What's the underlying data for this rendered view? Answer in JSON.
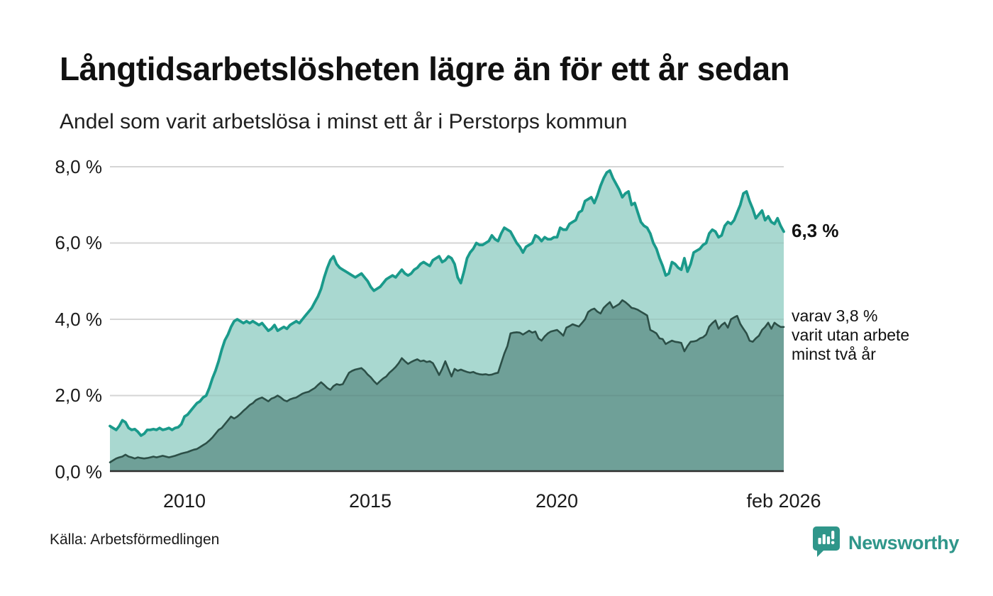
{
  "header": {
    "title": "Långtidsarbetslösheten lägre än för ett år sedan",
    "subtitle": "Andel som varit arbetslösa i minst ett år i Perstorps kommun"
  },
  "annotations": {
    "primary": "6,3 %",
    "secondary": "varav 3,8 %\nvarit utan arbete\nminst två år"
  },
  "footer": {
    "source": "Källa: Arbetsförmedlingen",
    "brand": "Newsworthy"
  },
  "colors": {
    "accent_teal": "#1a9a8b",
    "light_fill": "#a9d8d0",
    "dark_fill": "#6fa098",
    "dark_line": "#2c4f47",
    "grid": "#e3e3e3",
    "axis": "#2e2e2e",
    "brand_teal": "#2f968a"
  },
  "chart_data": {
    "type": "area",
    "title": "Långtidsarbetslösheten lägre än för ett år sedan",
    "subtitle": "Andel som varit arbetslösa i minst ett år i Perstorps kommun",
    "x_monthly_start": "2008-01",
    "x_monthly_end": "2026-02",
    "x_tick_labels": [
      "2010",
      "2015",
      "2020",
      "feb 2026"
    ],
    "y_tick_labels": [
      "8,0 %",
      "6,0 %",
      "4,0 %",
      "2,0 %",
      "0,0 %"
    ],
    "ylim": [
      0,
      8
    ],
    "grid_values": [
      2,
      4,
      6,
      8
    ],
    "grid": true,
    "legend_position": "right-annotations",
    "series": [
      {
        "name": "Andel som varit arbetslösa i minst ett år",
        "color": "#1a9a8b",
        "fill": "#a9d8d0",
        "last_value": 6.3,
        "last_value_label": "6,3 %",
        "values": [
          1.2,
          1.15,
          1.1,
          1.2,
          1.35,
          1.3,
          1.15,
          1.1,
          1.12,
          1.05,
          0.95,
          1.0,
          1.1,
          1.1,
          1.12,
          1.1,
          1.15,
          1.1,
          1.12,
          1.15,
          1.1,
          1.15,
          1.17,
          1.25,
          1.45,
          1.5,
          1.6,
          1.7,
          1.8,
          1.85,
          1.95,
          2.0,
          2.2,
          2.45,
          2.65,
          2.9,
          3.2,
          3.45,
          3.6,
          3.8,
          3.95,
          4.0,
          3.95,
          3.9,
          3.95,
          3.9,
          3.95,
          3.9,
          3.85,
          3.9,
          3.8,
          3.7,
          3.75,
          3.85,
          3.7,
          3.75,
          3.8,
          3.75,
          3.85,
          3.9,
          3.95,
          3.9,
          4.0,
          4.1,
          4.2,
          4.3,
          4.45,
          4.6,
          4.8,
          5.1,
          5.35,
          5.55,
          5.65,
          5.45,
          5.35,
          5.3,
          5.25,
          5.2,
          5.15,
          5.1,
          5.15,
          5.2,
          5.1,
          5.0,
          4.85,
          4.75,
          4.8,
          4.85,
          4.95,
          5.05,
          5.1,
          5.15,
          5.1,
          5.2,
          5.3,
          5.2,
          5.15,
          5.2,
          5.3,
          5.35,
          5.45,
          5.5,
          5.45,
          5.4,
          5.55,
          5.6,
          5.65,
          5.5,
          5.55,
          5.65,
          5.6,
          5.45,
          5.1,
          4.95,
          5.25,
          5.6,
          5.75,
          5.85,
          6.0,
          5.95,
          5.95,
          6.0,
          6.05,
          6.2,
          6.1,
          6.05,
          6.25,
          6.4,
          6.35,
          6.3,
          6.15,
          6.0,
          5.9,
          5.75,
          5.9,
          5.95,
          6.0,
          6.2,
          6.15,
          6.05,
          6.15,
          6.1,
          6.1,
          6.15,
          6.15,
          6.4,
          6.35,
          6.35,
          6.5,
          6.55,
          6.6,
          6.8,
          6.85,
          7.1,
          7.15,
          7.2,
          7.05,
          7.25,
          7.5,
          7.7,
          7.85,
          7.9,
          7.7,
          7.55,
          7.4,
          7.2,
          7.3,
          7.35,
          7.0,
          7.05,
          6.8,
          6.55,
          6.45,
          6.4,
          6.25,
          6.0,
          5.85,
          5.6,
          5.4,
          5.15,
          5.2,
          5.5,
          5.45,
          5.35,
          5.3,
          5.6,
          5.25,
          5.45,
          5.75,
          5.8,
          5.85,
          5.95,
          6.0,
          6.25,
          6.35,
          6.3,
          6.15,
          6.2,
          6.45,
          6.55,
          6.5,
          6.6,
          6.8,
          7.0,
          7.3,
          7.35,
          7.1,
          6.9,
          6.65,
          6.75,
          6.85,
          6.6,
          6.7,
          6.55,
          6.5,
          6.65,
          6.45,
          6.3
        ]
      },
      {
        "name": "varav varit utan arbete minst två år",
        "color": "#2c4f47",
        "fill": "#6fa098",
        "last_value": 3.8,
        "last_value_label": "varav 3,8 % varit utan arbete minst två år",
        "values": [
          0.25,
          0.3,
          0.35,
          0.38,
          0.4,
          0.45,
          0.4,
          0.38,
          0.35,
          0.38,
          0.36,
          0.35,
          0.36,
          0.38,
          0.4,
          0.38,
          0.4,
          0.42,
          0.4,
          0.38,
          0.4,
          0.42,
          0.45,
          0.48,
          0.5,
          0.52,
          0.55,
          0.58,
          0.6,
          0.65,
          0.7,
          0.75,
          0.82,
          0.9,
          1.0,
          1.1,
          1.15,
          1.25,
          1.35,
          1.45,
          1.4,
          1.45,
          1.52,
          1.6,
          1.67,
          1.75,
          1.8,
          1.88,
          1.92,
          1.95,
          1.9,
          1.85,
          1.92,
          1.95,
          2.0,
          1.95,
          1.88,
          1.85,
          1.9,
          1.93,
          1.95,
          2.0,
          2.05,
          2.08,
          2.1,
          2.15,
          2.2,
          2.28,
          2.35,
          2.28,
          2.2,
          2.15,
          2.25,
          2.3,
          2.28,
          2.3,
          2.45,
          2.6,
          2.65,
          2.68,
          2.7,
          2.72,
          2.65,
          2.55,
          2.48,
          2.38,
          2.3,
          2.38,
          2.45,
          2.5,
          2.6,
          2.67,
          2.75,
          2.85,
          2.98,
          2.9,
          2.83,
          2.88,
          2.92,
          2.95,
          2.9,
          2.92,
          2.88,
          2.9,
          2.85,
          2.7,
          2.54,
          2.7,
          2.9,
          2.7,
          2.5,
          2.7,
          2.65,
          2.68,
          2.65,
          2.62,
          2.6,
          2.62,
          2.58,
          2.56,
          2.55,
          2.56,
          2.54,
          2.55,
          2.58,
          2.6,
          2.85,
          3.1,
          3.3,
          3.63,
          3.65,
          3.66,
          3.65,
          3.6,
          3.65,
          3.7,
          3.65,
          3.68,
          3.5,
          3.44,
          3.55,
          3.63,
          3.68,
          3.7,
          3.72,
          3.65,
          3.57,
          3.78,
          3.82,
          3.87,
          3.84,
          3.81,
          3.9,
          4.0,
          4.19,
          4.25,
          4.28,
          4.2,
          4.15,
          4.3,
          4.38,
          4.45,
          4.3,
          4.35,
          4.4,
          4.5,
          4.45,
          4.38,
          4.3,
          4.28,
          4.25,
          4.2,
          4.15,
          4.1,
          3.72,
          3.68,
          3.63,
          3.5,
          3.48,
          3.35,
          3.4,
          3.44,
          3.41,
          3.4,
          3.38,
          3.16,
          3.3,
          3.41,
          3.42,
          3.44,
          3.5,
          3.53,
          3.6,
          3.81,
          3.9,
          3.97,
          3.75,
          3.85,
          3.91,
          3.78,
          4.0,
          4.05,
          4.09,
          3.88,
          3.75,
          3.63,
          3.44,
          3.41,
          3.5,
          3.57,
          3.72,
          3.8,
          3.91,
          3.75,
          3.91,
          3.85,
          3.8,
          3.8
        ]
      }
    ]
  }
}
